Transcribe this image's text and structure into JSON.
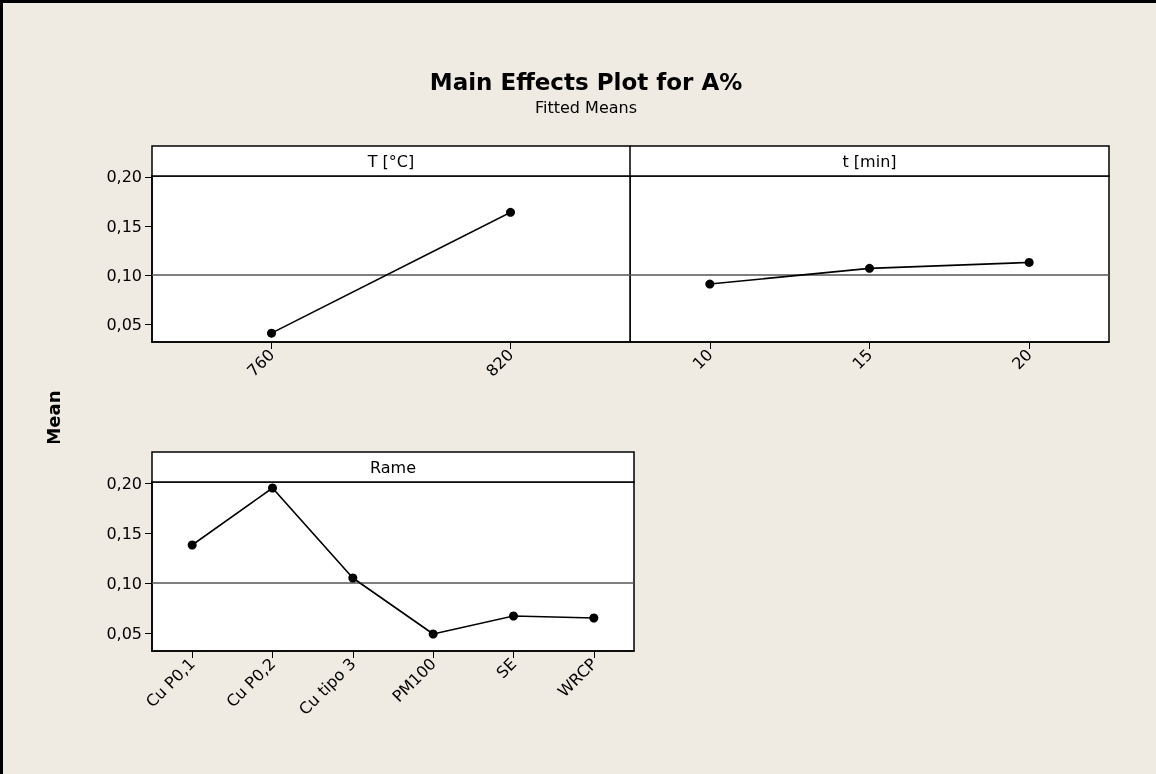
{
  "chart_data": [
    {
      "type": "line",
      "title": "Main Effects Plot for A%",
      "subtitle": "Fitted Means",
      "xlabel": "T [°C]",
      "ylabel": "Mean",
      "categories": [
        "760",
        "820"
      ],
      "series": [
        {
          "color": "#000000",
          "values": [
            0.041,
            0.164
          ]
        }
      ],
      "ylim": [
        0.032,
        0.201
      ],
      "yticks": [
        {
          "value": 0.05,
          "label": "0,05"
        },
        {
          "value": 0.1,
          "label": "0,10"
        },
        {
          "value": 0.15,
          "label": "0,15"
        },
        {
          "value": 0.2,
          "label": "0,20"
        }
      ],
      "ref_lines": [
        {
          "axis": "y",
          "value": 0.101,
          "label": null,
          "color": "#555555"
        }
      ],
      "marker": "circle",
      "line_style": "solid",
      "grid": false
    },
    {
      "type": "line",
      "xlabel": "t [min]",
      "categories": [
        "10",
        "15",
        "20"
      ],
      "series": [
        {
          "color": "#000000",
          "values": [
            0.091,
            0.107,
            0.113
          ]
        }
      ],
      "ylim": [
        0.032,
        0.201
      ],
      "tick_labels": "x",
      "ref_lines": [
        {
          "axis": "y",
          "value": 0.101,
          "label": null,
          "color": "#555555"
        }
      ],
      "marker": "circle",
      "line_style": "solid",
      "grid": false
    },
    {
      "type": "line",
      "xlabel": "Rame",
      "categories": [
        "Cu P0,1",
        "Cu P0,2",
        "Cu tipo 3",
        "PM100",
        "SE",
        "WRCP"
      ],
      "series": [
        {
          "color": "#000000",
          "values": [
            0.138,
            0.195,
            0.105,
            0.049,
            0.067,
            0.065
          ]
        }
      ],
      "ylim": [
        0.032,
        0.201
      ],
      "yticks": [
        {
          "value": 0.05,
          "label": "0,05"
        },
        {
          "value": 0.1,
          "label": "0,10"
        },
        {
          "value": 0.15,
          "label": "0,15"
        },
        {
          "value": 0.2,
          "label": "0,20"
        }
      ],
      "ref_lines": [
        {
          "axis": "y",
          "value": 0.101,
          "label": null,
          "color": "#555555"
        }
      ],
      "marker": "circle",
      "line_style": "solid",
      "grid": false
    }
  ]
}
